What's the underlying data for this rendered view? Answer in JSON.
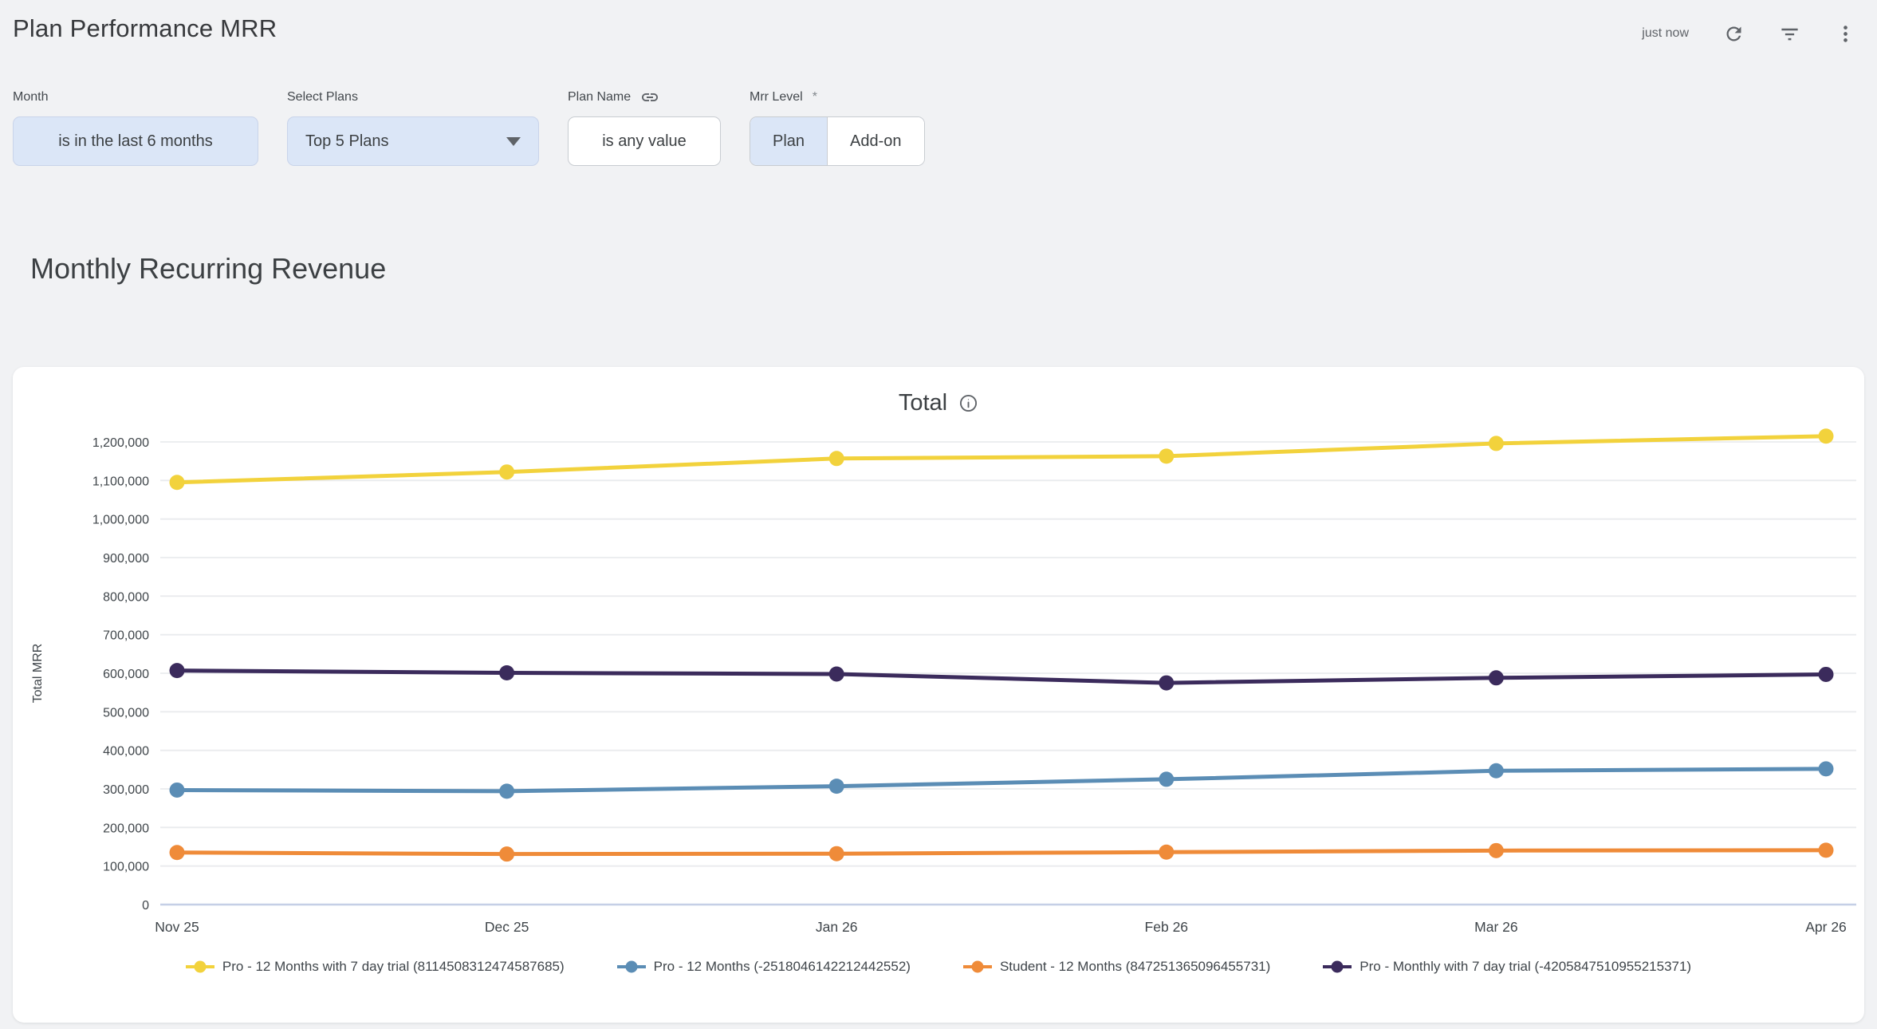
{
  "header": {
    "title": "Plan Performance MRR",
    "refreshed": "just now"
  },
  "filters": {
    "month": {
      "label": "Month",
      "value": "is in the last 6 months"
    },
    "select_plans": {
      "label": "Select Plans",
      "value": "Top 5 Plans"
    },
    "plan_name": {
      "label": "Plan Name",
      "value": "is any value"
    },
    "mrr_level": {
      "label": "Mrr Level",
      "required_mark": "*",
      "options": [
        "Plan",
        "Add-on"
      ],
      "selected": "Plan"
    }
  },
  "section": {
    "title": "Monthly Recurring Revenue"
  },
  "chart_card": {
    "title": "Total"
  },
  "chart_data": {
    "type": "line",
    "title": "Total",
    "xlabel": "",
    "ylabel": "Total MRR",
    "categories": [
      "Nov 25",
      "Dec 25",
      "Jan 26",
      "Feb 26",
      "Mar 26",
      "Apr 26"
    ],
    "series": [
      {
        "name": "Pro - 12 Months with 7 day trial (8114508312474587685)",
        "color": "#f2d23c",
        "values": [
          1095000,
          1122000,
          1157000,
          1163000,
          1196000,
          1215000
        ]
      },
      {
        "name": "Pro - 12 Months (-2518046142212442552)",
        "color": "#5b8db5",
        "values": [
          297000,
          294000,
          307000,
          325000,
          347000,
          352000
        ]
      },
      {
        "name": "Student - 12 Months (847251365096455731)",
        "color": "#ef8b39",
        "values": [
          135000,
          131000,
          132000,
          136000,
          140000,
          141000
        ]
      },
      {
        "name": "Pro - Monthly with 7 day trial (-4205847510955215371)",
        "color": "#3b2b5c",
        "values": [
          607000,
          601000,
          598000,
          575000,
          588000,
          597000
        ]
      }
    ],
    "ylim": [
      0,
      1250000
    ],
    "ytick_step": 100000,
    "grid": true,
    "legend_position": "bottom",
    "colors": {
      "gridline": "#e9ebee",
      "zero_line": "#c5cfe6",
      "tick_text": "#3f454a"
    }
  }
}
